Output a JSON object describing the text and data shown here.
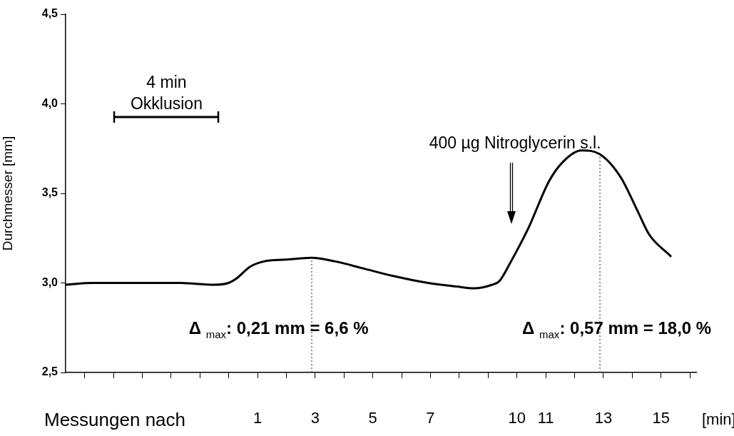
{
  "chart_data": {
    "type": "line",
    "ylabel": "Durchmesser [mm]",
    "xlabel": "Messungen nach",
    "xlim": [
      -5.66,
      16.22
    ],
    "xticks": [
      {
        "value": -5,
        "label": null
      },
      {
        "value": -4,
        "label": null
      },
      {
        "value": -3,
        "label": null
      },
      {
        "value": -2,
        "label": null
      },
      {
        "value": -1,
        "label": null
      },
      {
        "value": 0,
        "label": null
      },
      1,
      {
        "value": 2,
        "label": null
      },
      3,
      {
        "value": 4,
        "label": null
      },
      5,
      {
        "value": 6,
        "label": null
      },
      7,
      {
        "value": 8,
        "label": null
      },
      {
        "value": 9,
        "label": null
      },
      10,
      11,
      {
        "value": 12,
        "label": null
      },
      13,
      {
        "value": 14,
        "label": null
      },
      15,
      {
        "value": 16,
        "label": null
      }
    ],
    "ylim": [
      2.5,
      4.5
    ],
    "yticks": [
      {
        "value": 2.5,
        "label": "2,5"
      },
      {
        "value": 3,
        "label": "3,0"
      },
      {
        "value": 3.5,
        "label": "3,5"
      },
      {
        "value": 4,
        "label": "4,0"
      },
      {
        "value": 4.5,
        "label": "4,5"
      }
    ],
    "grid": false,
    "legend": false,
    "marker": "none",
    "line_style": "solid",
    "series": [
      {
        "color": "#000000",
        "x": [
          -5.66,
          -4.72,
          -2.99,
          -1.75,
          -0.51,
          -0.01,
          0.31,
          0.73,
          1.22,
          1.97,
          2.88,
          3.7,
          4.69,
          5.68,
          6.92,
          7.91,
          8.52,
          9.14,
          9.39,
          9.76,
          10.38,
          11.12,
          11.62,
          12.24,
          12.86,
          13.6,
          14.22,
          14.59,
          15.33
        ],
        "values": [
          2.99,
          3.0,
          3.0,
          3.0,
          2.99,
          3.0,
          3.03,
          3.09,
          3.12,
          3.13,
          3.14,
          3.12,
          3.08,
          3.04,
          3.0,
          2.98,
          2.97,
          2.99,
          3.01,
          3.11,
          3.3,
          3.57,
          3.68,
          3.74,
          3.72,
          3.59,
          3.39,
          3.27,
          3.15
        ]
      }
    ],
    "ref_lines": [
      {
        "axis": "x",
        "value": 2.88,
        "line_style": "dotted"
      },
      {
        "axis": "x",
        "value": 12.88,
        "line_style": "dotted"
      }
    ],
    "annotations": [
      "4 min Okklusion",
      "400 µg Nitroglycerin s.l.",
      "Δ $_{max}$: 0,21 mm = 6,6 %",
      "Δ $_{max}$: 0,57 mm = 18,0 %",
      "[min]"
    ]
  }
}
